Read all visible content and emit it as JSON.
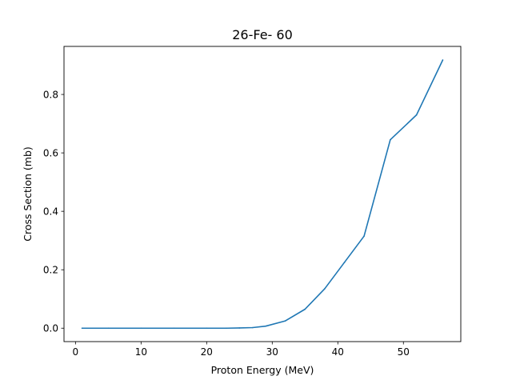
{
  "chart_data": {
    "type": "line",
    "title": "26-Fe- 60",
    "xlabel": "Proton Energy (MeV)",
    "ylabel": "Cross Section (mb)",
    "xlim": [
      -1.75,
      58.75
    ],
    "ylim": [
      -0.0459,
      0.9645
    ],
    "xticks": [
      0,
      10,
      20,
      30,
      40,
      50
    ],
    "xtick_labels": [
      "0",
      "10",
      "20",
      "30",
      "40",
      "50"
    ],
    "yticks": [
      0.0,
      0.2,
      0.4,
      0.6,
      0.8
    ],
    "ytick_labels": [
      "0.0",
      "0.2",
      "0.4",
      "0.6",
      "0.8"
    ],
    "grid": false,
    "series": [
      {
        "color": "#1f77b4",
        "x": [
          1,
          5,
          10,
          15,
          20,
          23,
          25,
          27,
          29,
          32,
          35,
          38,
          41,
          44,
          48,
          52,
          56
        ],
        "y": [
          0.0,
          0.0,
          0.0,
          0.0,
          0.0,
          0.0,
          0.0008,
          0.002,
          0.007,
          0.025,
          0.065,
          0.135,
          0.225,
          0.315,
          0.645,
          0.73,
          0.918
        ]
      }
    ]
  }
}
